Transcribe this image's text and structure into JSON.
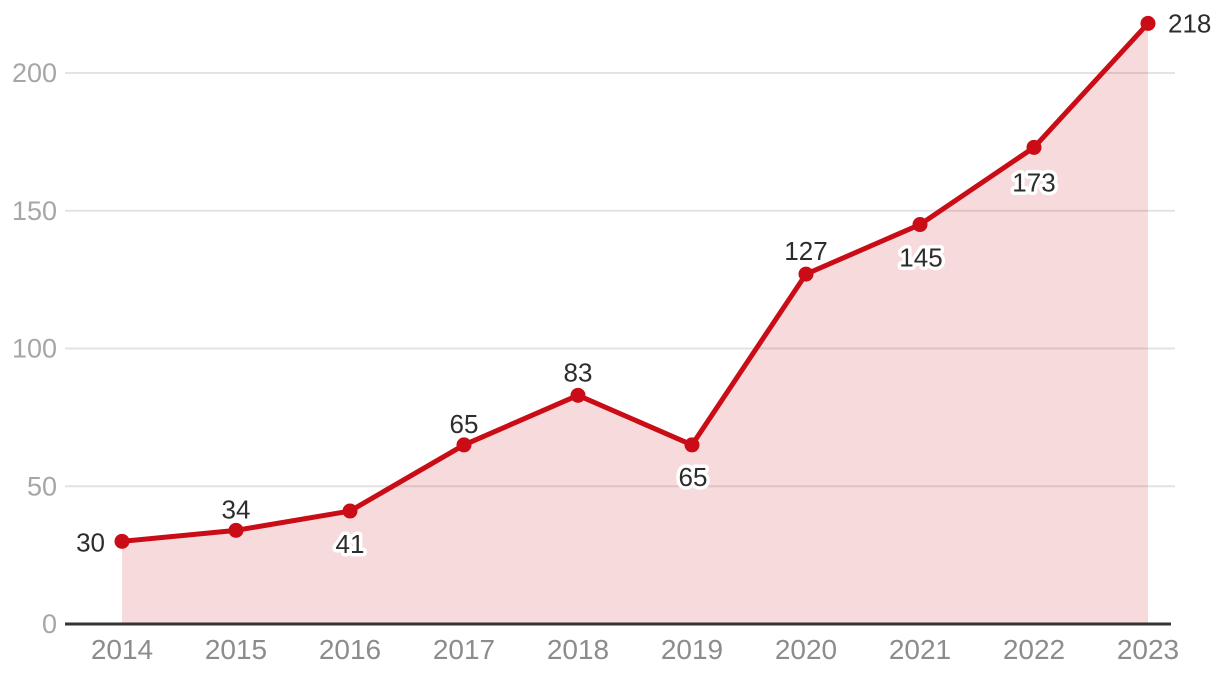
{
  "chart_data": {
    "type": "area",
    "title": "",
    "xlabel": "",
    "ylabel": "",
    "x": [
      2014,
      2015,
      2016,
      2017,
      2018,
      2019,
      2020,
      2021,
      2022,
      2023
    ],
    "values": [
      30,
      34,
      41,
      65,
      83,
      65,
      127,
      145,
      173,
      218
    ],
    "data_labels": [
      "30",
      "34",
      "41",
      "65",
      "83",
      "65",
      "127",
      "145",
      "173",
      "218"
    ],
    "yticks": [
      0,
      50,
      100,
      150,
      200
    ],
    "ylim": [
      0,
      200
    ],
    "grid": true,
    "legend": "none",
    "marker": "circle"
  },
  "colors": {
    "line": "#c90c15",
    "marker": "#c90c15",
    "area": "#c90c15",
    "area_opacity": "0.15",
    "grid": "#e3e3e3",
    "axis": "#333333",
    "y_tick_label": "#a6a6a6",
    "x_tick_label": "#8c8c8c",
    "data_label": "#2d2d2d",
    "label_halo": "#ffffff",
    "background": "#ffffff"
  }
}
